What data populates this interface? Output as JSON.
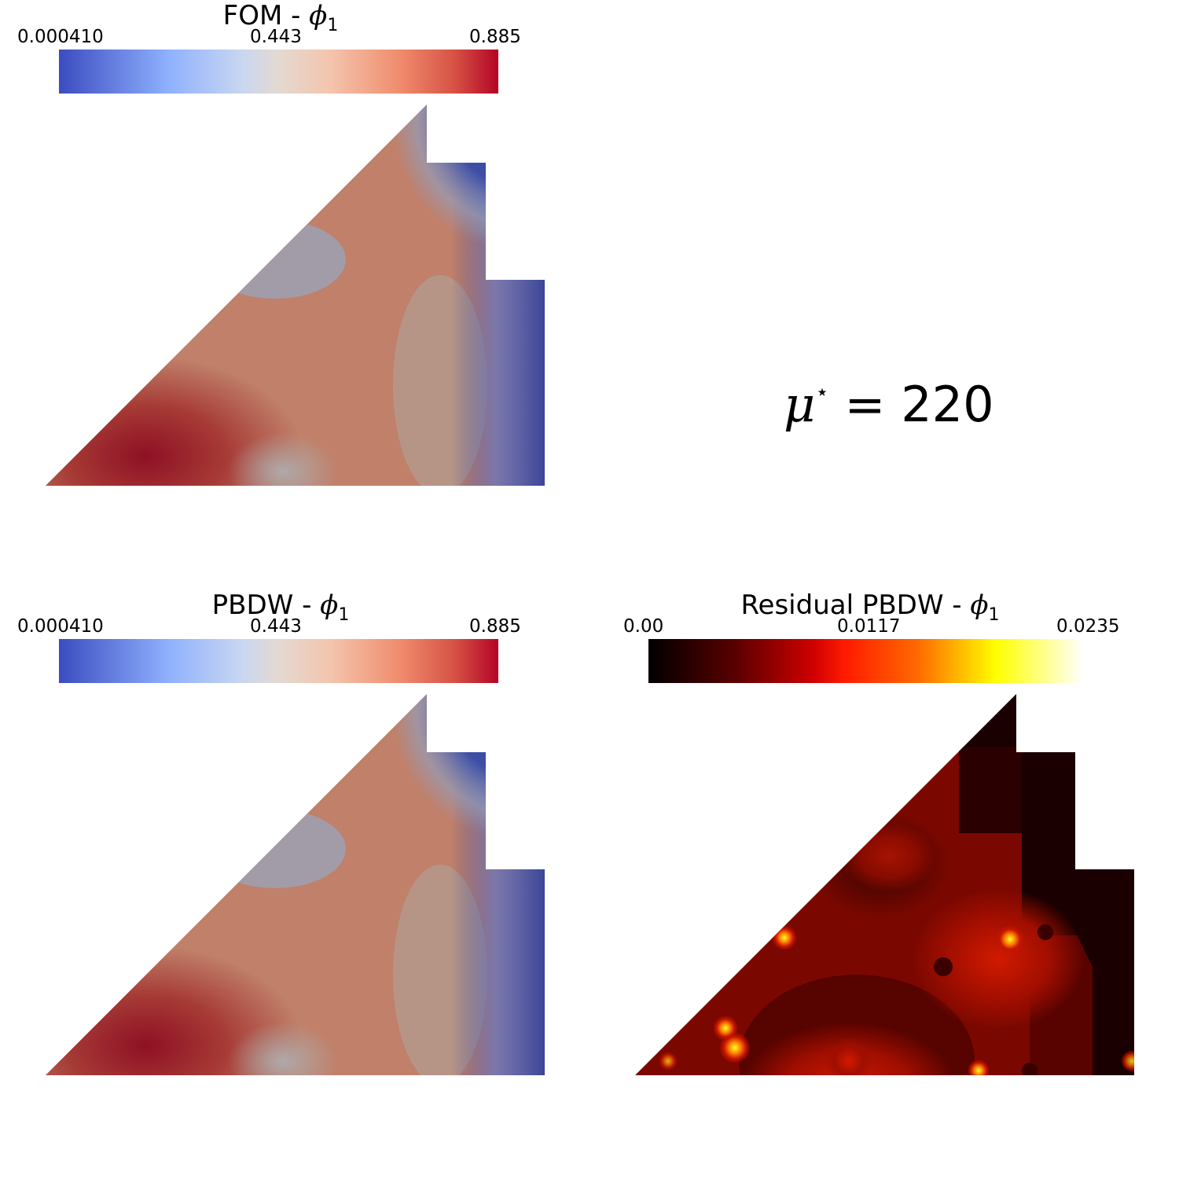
{
  "panels": {
    "fom": {
      "title_prefix": "FOM - ",
      "symbol": "ϕ",
      "subscript": "1",
      "ticks": {
        "min": "0.000410",
        "mid": "0.443",
        "max": "0.885"
      },
      "colormap": "coolwarm"
    },
    "pbdw": {
      "title_prefix": "PBDW - ",
      "symbol": "ϕ",
      "subscript": "1",
      "ticks": {
        "min": "0.000410",
        "mid": "0.443",
        "max": "0.885"
      },
      "colormap": "coolwarm"
    },
    "residual": {
      "title_prefix": "Residual PBDW - ",
      "symbol": "ϕ",
      "subscript": "1",
      "ticks": {
        "min": "0.00",
        "mid": "0.0117",
        "max": "0.0235"
      },
      "colormap": "black-body"
    }
  },
  "parameter": {
    "symbol": "μ",
    "star": "⋆",
    "equals": " = ",
    "value": "220"
  },
  "colors": {
    "coolwarm_low": "#3b4cc0",
    "coolwarm_mid": "#dddddd",
    "coolwarm_high": "#b40426",
    "field_blue": "#323e93",
    "field_red": "#8e1024",
    "field_tan": "#c0806a",
    "residual_dark": "#160000",
    "residual_red": "#cc1a00",
    "residual_yellow": "#ffff00"
  }
}
